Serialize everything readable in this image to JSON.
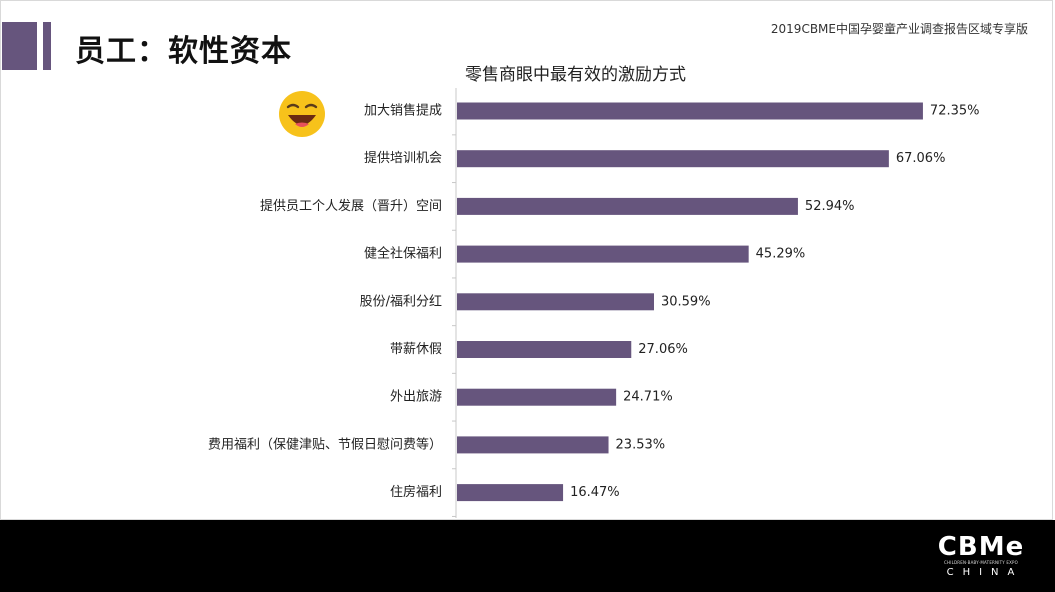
{
  "header": {
    "title": "员工：软性资本",
    "note": "2019CBME中国孕婴童产业调查报告区域专享版"
  },
  "colors": {
    "accent": "#66557d",
    "bar": "#66557d",
    "footer": "#000000"
  },
  "icons": {
    "emoji": "grinning-face-emoji-icon"
  },
  "chart_data": {
    "type": "bar",
    "orientation": "horizontal",
    "title": "零售商眼中最有效的激励方式",
    "categories": [
      "加大销售提成",
      "提供培训机会",
      "提供员工个人发展（晋升）空间",
      "健全社保福利",
      "股份/福利分红",
      "带薪休假",
      "外出旅游",
      "费用福利（保健津贴、节假日慰问费等）",
      "住房福利"
    ],
    "values": [
      72.35,
      67.06,
      52.94,
      45.29,
      30.59,
      27.06,
      24.71,
      23.53,
      16.47
    ],
    "value_labels": [
      "72.35%",
      "67.06%",
      "52.94%",
      "45.29%",
      "30.59%",
      "27.06%",
      "24.71%",
      "23.53%",
      "16.47%"
    ],
    "xlim": [
      0,
      100
    ],
    "grid": false,
    "legend": "none"
  },
  "footer": {
    "logo_main": "CBMe",
    "logo_sub": "CHILDREN·BABY·MATERNITY EXPO",
    "logo_china": "CHINA"
  }
}
